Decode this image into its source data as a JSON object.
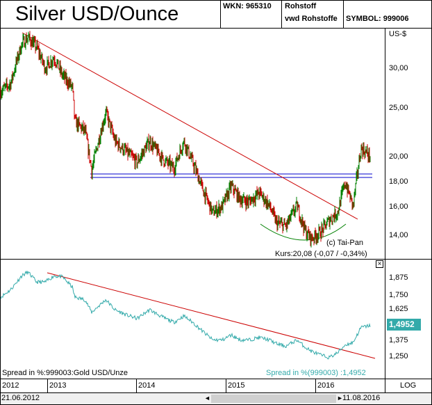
{
  "header": {
    "title": "Silver USD/Ounce",
    "wkn": "WKN: 965310",
    "category_line1": "Rohstoff",
    "category_line2": "vwd Rohstoffe",
    "symbol": "SYMBOL: 999006"
  },
  "main_chart": {
    "unit": "US-$",
    "y_ticks": [
      "30,00",
      "25,00",
      "20,00",
      "18,00",
      "16,00",
      "14,00"
    ],
    "copyright": "(c) Tai-Pan",
    "last_quote": "Kurs:20,08 (-0,07 / -0,34%)"
  },
  "spread_chart": {
    "y_ticks": [
      "1,875",
      "1,750",
      "1,625",
      "1,375",
      "1,250"
    ],
    "current_value": "1,4952",
    "label": "Spread in %:999003:Gold USD/Unze",
    "legend": "Spread in %(999003) :1,4952",
    "close_symbol": "×"
  },
  "timeline": {
    "years": [
      "2012",
      "2013",
      "2014",
      "2015",
      "2016"
    ],
    "scale_label": "LOG",
    "start_date": "21.06.2012",
    "end_date": "11.08.2016",
    "scroll_left": "◄",
    "scroll_right": "►"
  },
  "colors": {
    "price_up": "#008000",
    "price_down": "#cc0000",
    "trendline": "#cc0000",
    "support_line": "#0000cc",
    "bottom_arc": "#008000",
    "spread_line": "#33aaaa",
    "value_badge": "#33aaaa"
  },
  "chart_data": [
    {
      "type": "line",
      "title": "Silver USD/Ounce",
      "ylabel": "US-$",
      "y_scale": "log",
      "ylim": [
        13,
        37
      ],
      "x": [
        "2012-06-21",
        "2012-08-01",
        "2012-09-15",
        "2012-10-10",
        "2012-11-15",
        "2012-12-20",
        "2013-01-25",
        "2013-03-01",
        "2013-04-10",
        "2013-04-20",
        "2013-06-01",
        "2013-06-28",
        "2013-08-25",
        "2013-10-01",
        "2013-11-15",
        "2013-12-31",
        "2014-02-20",
        "2014-04-15",
        "2014-05-30",
        "2014-07-10",
        "2014-08-15",
        "2014-09-30",
        "2014-11-05",
        "2014-12-15",
        "2015-01-20",
        "2015-02-25",
        "2015-04-01",
        "2015-05-15",
        "2015-06-25",
        "2015-07-24",
        "2015-09-01",
        "2015-10-15",
        "2015-11-20",
        "2015-12-14",
        "2016-01-20",
        "2016-02-25",
        "2016-03-31",
        "2016-04-29",
        "2016-06-01",
        "2016-07-04",
        "2016-08-11"
      ],
      "series": [
        {
          "values": [
            27.0,
            28.0,
            33.5,
            34.5,
            33.0,
            30.0,
            31.5,
            29.0,
            27.5,
            23.5,
            22.5,
            18.8,
            24.5,
            21.5,
            20.5,
            19.5,
            21.5,
            19.8,
            19.0,
            21.5,
            19.5,
            17.0,
            15.5,
            16.0,
            17.5,
            16.5,
            16.3,
            17.0,
            16.0,
            14.8,
            14.6,
            16.0,
            14.2,
            13.8,
            14.2,
            15.0,
            15.6,
            17.8,
            16.0,
            20.8,
            20.08
          ]
        }
      ],
      "annotations": [
        "(c) Tai-Pan",
        "Kurs:20,08 (-0,07 / -0,34%)"
      ]
    },
    {
      "type": "line",
      "title": "Spread in %:999003:Gold USD/Unze",
      "ylim": [
        1.2,
        1.98
      ],
      "x": [
        "2012-06-21",
        "2012-08-01",
        "2012-09-15",
        "2012-10-10",
        "2012-11-15",
        "2012-12-20",
        "2013-01-25",
        "2013-03-01",
        "2013-04-10",
        "2013-04-20",
        "2013-06-01",
        "2013-06-28",
        "2013-08-25",
        "2013-10-01",
        "2013-11-15",
        "2013-12-31",
        "2014-02-20",
        "2014-04-15",
        "2014-05-30",
        "2014-07-10",
        "2014-08-15",
        "2014-09-30",
        "2014-11-05",
        "2014-12-15",
        "2015-01-20",
        "2015-02-25",
        "2015-04-01",
        "2015-05-15",
        "2015-06-25",
        "2015-07-24",
        "2015-09-01",
        "2015-10-15",
        "2015-11-20",
        "2015-12-14",
        "2016-01-20",
        "2016-02-25",
        "2016-03-31",
        "2016-04-29",
        "2016-06-01",
        "2016-07-04",
        "2016-08-11"
      ],
      "series": [
        {
          "values": [
            1.72,
            1.78,
            1.89,
            1.92,
            1.84,
            1.84,
            1.89,
            1.88,
            1.8,
            1.72,
            1.7,
            1.6,
            1.7,
            1.62,
            1.58,
            1.55,
            1.62,
            1.56,
            1.52,
            1.57,
            1.52,
            1.44,
            1.38,
            1.38,
            1.42,
            1.38,
            1.38,
            1.4,
            1.38,
            1.35,
            1.33,
            1.38,
            1.32,
            1.29,
            1.26,
            1.24,
            1.28,
            1.34,
            1.36,
            1.48,
            1.4952
          ]
        }
      ],
      "annotations": [
        "Spread in %(999003) :1,4952"
      ]
    }
  ]
}
